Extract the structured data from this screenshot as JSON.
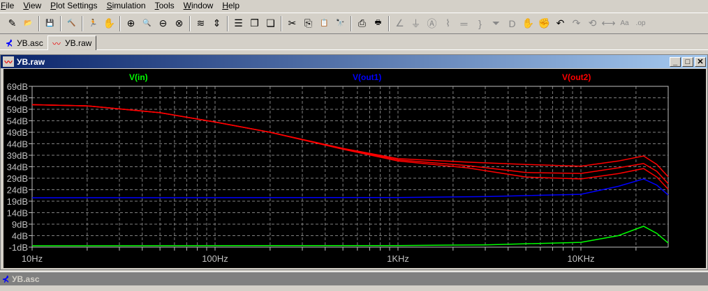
{
  "menu": [
    "File",
    "View",
    "Plot Settings",
    "Simulation",
    "Tools",
    "Window",
    "Help"
  ],
  "toolbar": [
    {
      "icon": "new-schematic-icon",
      "g": "✎"
    },
    {
      "icon": "open-icon",
      "g": "📂"
    },
    "sep",
    {
      "icon": "save-icon",
      "g": "💾"
    },
    "sep",
    {
      "icon": "control-panel-icon",
      "g": "🔨"
    },
    "sep",
    {
      "icon": "run-icon",
      "g": "🏃"
    },
    {
      "icon": "halt-icon",
      "g": "✋",
      "dis": true
    },
    "sep",
    {
      "icon": "zoom-in-icon",
      "g": "⊕"
    },
    {
      "icon": "zoom-pan-icon",
      "g": "🔍"
    },
    {
      "icon": "zoom-out-icon",
      "g": "⊖"
    },
    {
      "icon": "zoom-fit-icon",
      "g": "⊗"
    },
    "sep",
    {
      "icon": "autorange-icon",
      "g": "≋"
    },
    {
      "icon": "autorange-y-icon",
      "g": "⇕"
    },
    "sep",
    {
      "icon": "tile-horizontal-icon",
      "g": "☰"
    },
    {
      "icon": "cascade-icon",
      "g": "❐"
    },
    {
      "icon": "close-all-icon",
      "g": "❏"
    },
    "sep",
    {
      "icon": "cut-icon",
      "g": "✂"
    },
    {
      "icon": "copy-icon",
      "g": "⎘"
    },
    {
      "icon": "paste-icon",
      "g": "📋",
      "dis": true
    },
    {
      "icon": "find-icon",
      "g": "🔭"
    },
    "sep",
    {
      "icon": "print-setup-icon",
      "g": "⎙"
    },
    {
      "icon": "print-icon",
      "g": "🖶"
    },
    "sep",
    {
      "icon": "wire-icon",
      "g": "∠",
      "dis": true
    },
    {
      "icon": "ground-icon",
      "g": "⏚",
      "dis": true
    },
    {
      "icon": "label-icon",
      "g": "Ⓐ",
      "dis": true
    },
    {
      "icon": "resistor-icon",
      "g": "⌇",
      "dis": true
    },
    {
      "icon": "capacitor-icon",
      "g": "═",
      "dis": true
    },
    {
      "icon": "inductor-icon",
      "g": "}",
      "dis": true
    },
    {
      "icon": "diode-icon",
      "g": "⏷",
      "dis": true
    },
    {
      "icon": "component-icon",
      "g": "D",
      "dis": true
    },
    {
      "icon": "move-icon",
      "g": "✋",
      "dis": true
    },
    {
      "icon": "drag-icon",
      "g": "✊",
      "dis": true
    },
    {
      "icon": "undo-icon",
      "g": "↶"
    },
    {
      "icon": "redo-icon",
      "g": "↷",
      "dis": true
    },
    {
      "icon": "rotate-icon",
      "g": "⟲",
      "dis": true
    },
    {
      "icon": "mirror-icon",
      "g": "⟷",
      "dis": true
    },
    {
      "icon": "text-icon",
      "g": "Aa",
      "dis": true
    },
    {
      "icon": "spice-directive-icon",
      "g": ".op",
      "dis": true
    }
  ],
  "tabs": [
    {
      "label": "УВ.asc",
      "icon": "schematic-icon"
    },
    {
      "label": "УВ.raw",
      "icon": "waveform-icon",
      "active": true
    }
  ],
  "window": {
    "title": "УВ.raw",
    "minimize": "_",
    "maximize": "□",
    "close": "✕"
  },
  "window2": {
    "title": "УВ.asc"
  },
  "chart_data": {
    "type": "line",
    "x_scale": "log",
    "xlim": [
      10,
      30000
    ],
    "ylim": [
      -1,
      69
    ],
    "x_ticks": [
      {
        "v": 10,
        "label": "10Hz"
      },
      {
        "v": 100,
        "label": "100Hz"
      },
      {
        "v": 1000,
        "label": "1KHz"
      },
      {
        "v": 10000,
        "label": "10KHz"
      }
    ],
    "y_ticks": [
      {
        "v": 69,
        "label": "69dB"
      },
      {
        "v": 64,
        "label": "64dB"
      },
      {
        "v": 59,
        "label": "59dB"
      },
      {
        "v": 54,
        "label": "54dB"
      },
      {
        "v": 49,
        "label": "49dB"
      },
      {
        "v": 44,
        "label": "44dB"
      },
      {
        "v": 39,
        "label": "39dB"
      },
      {
        "v": 34,
        "label": "34dB"
      },
      {
        "v": 29,
        "label": "29dB"
      },
      {
        "v": 24,
        "label": "24dB"
      },
      {
        "v": 19,
        "label": "19dB"
      },
      {
        "v": 14,
        "label": "14dB"
      },
      {
        "v": 9,
        "label": "9dB"
      },
      {
        "v": 4,
        "label": "4dB"
      },
      {
        "v": -1,
        "label": "-1dB"
      }
    ],
    "grid": true,
    "legend": [
      {
        "name": "V(in)",
        "color": "#00ff00"
      },
      {
        "name": "V(out1)",
        "color": "#0000ff"
      },
      {
        "name": "V(out2)",
        "color": "#ff0000"
      }
    ],
    "series": [
      {
        "name": "V(in)",
        "color": "#00ff00",
        "x": [
          10,
          1000,
          3000,
          10000,
          16000,
          22000,
          26000,
          30000
        ],
        "y": [
          -0.4,
          -0.3,
          0,
          1.1,
          4,
          8.1,
          5,
          0.8
        ]
      },
      {
        "name": "V(out1)",
        "color": "#0000ff",
        "x": [
          10,
          1000,
          3000,
          10000,
          16000,
          22000,
          26000,
          30000
        ],
        "y": [
          20.5,
          20.6,
          21,
          22,
          25.5,
          28.7,
          26,
          21.7
        ]
      },
      {
        "name": "V(out2)",
        "color": "#ff0000",
        "x": [
          10,
          20,
          50,
          100,
          200,
          500,
          1000,
          2400,
          5000,
          10000,
          16000,
          22000,
          26000,
          30000
        ],
        "y": [
          61,
          60.5,
          57.5,
          53.5,
          49,
          42,
          37.5,
          36,
          35,
          34.2,
          36.5,
          38.7,
          35,
          29.6
        ]
      },
      {
        "name": "V(out2)",
        "color": "#ff0000",
        "x": [
          10,
          20,
          50,
          100,
          200,
          500,
          1000,
          2400,
          5000,
          10000,
          16000,
          22000,
          26000,
          30000
        ],
        "y": [
          61,
          60.5,
          57.5,
          53.5,
          49,
          41.8,
          37,
          34.5,
          31.5,
          31.1,
          33.5,
          35.4,
          32,
          26.6
        ]
      },
      {
        "name": "V(out2)",
        "color": "#ff0000",
        "x": [
          10,
          20,
          50,
          100,
          200,
          500,
          1000,
          2400,
          5000,
          10000,
          16000,
          22000,
          26000,
          30000
        ],
        "y": [
          61,
          60.5,
          57.5,
          53.5,
          49,
          41.6,
          36.5,
          33.5,
          29.5,
          28.7,
          31,
          33.2,
          29.5,
          24.2
        ]
      }
    ]
  }
}
